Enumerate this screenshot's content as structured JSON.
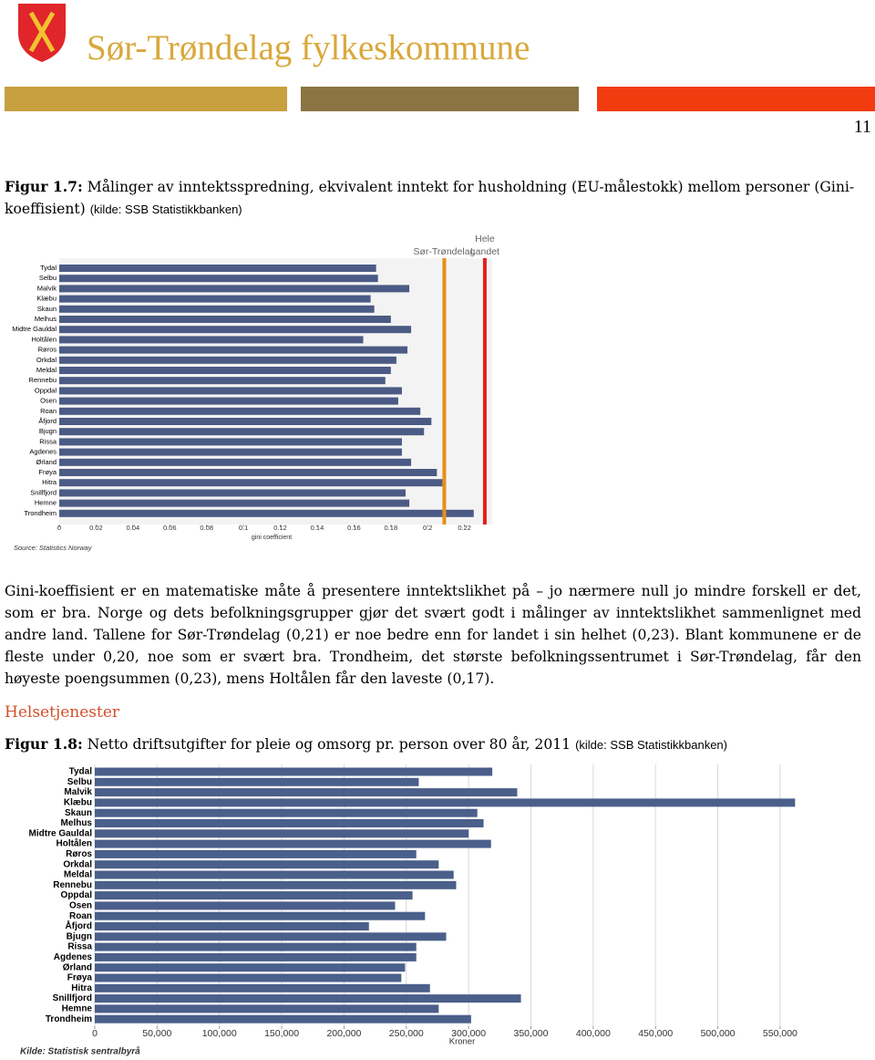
{
  "header": {
    "title": "Sør-Trøndelag fylkeskommune",
    "page_number": "11"
  },
  "figure_1": {
    "label": "Figur 1.7:",
    "text": "Målinger av inntektsspredning, ekvivalent inntekt for husholdning (EU-målestokk) mellom personer (Gini-koeffisient)",
    "source": "(kilde: SSB Statistikkbanken)"
  },
  "body_text": "Gini-koeffisient er en matematiske måte å presentere inntektslikhet på – jo nærmere null jo mindre forskell er det, som er bra. Norge og dets befolkningsgrupper gjør det svært godt i målinger av inntektslikhet sammenlignet med andre land. Tallene for Sør-Trøndelag (0,21) er noe bedre enn for landet i sin helhet (0,23). Blant kommunene er de fleste under 0,20, noe som er svært bra. Trondheim, det største befolkningssentrumet i Sør-Trøndelag, får den høyeste poengsummen (0,23), mens Holtålen får den laveste (0,17).",
  "section_heading": "Helsetjenester",
  "figure_2": {
    "label": "Figur 1.8:",
    "text": "Netto driftsutgifter for pleie og omsorg pr. person over 80 år, 2011",
    "source": "(kilde: SSB Statistikkbanken)"
  },
  "chart_data": [
    {
      "type": "bar",
      "orientation": "horizontal",
      "categories": [
        "Tydal",
        "Selbu",
        "Malvik",
        "Klæbu",
        "Skaun",
        "Melhus",
        "Midtre Gauldal",
        "Holtålen",
        "Røros",
        "Orkdal",
        "Meldal",
        "Rennebu",
        "Oppdal",
        "Osen",
        "Roan",
        "Åfjord",
        "Bjugn",
        "Rissa",
        "Agdenes",
        "Ørland",
        "Frøya",
        "Hitra",
        "Snillfjord",
        "Hemne",
        "Trondheim"
      ],
      "values": [
        0.172,
        0.173,
        0.19,
        0.169,
        0.171,
        0.18,
        0.191,
        0.165,
        0.189,
        0.183,
        0.18,
        0.177,
        0.186,
        0.184,
        0.196,
        0.202,
        0.198,
        0.186,
        0.186,
        0.191,
        0.205,
        0.208,
        0.188,
        0.19,
        0.225
      ],
      "color": "#4b5b85",
      "xlim": [
        0,
        0.235
      ],
      "xticks": [
        0,
        0.02,
        0.04,
        0.06,
        0.08,
        0.1,
        0.12,
        0.14,
        0.16,
        0.18,
        0.2,
        0.22
      ],
      "xlabel": "gini coefficient",
      "source": "Source: Statistics Norway",
      "reference_lines": [
        {
          "name_lines": [
            "Sør-Trøndelag"
          ],
          "value": 0.209,
          "color": "#e8901a"
        },
        {
          "name_lines": [
            "Hele",
            "Landet"
          ],
          "value": 0.231,
          "color": "#e02020"
        }
      ]
    },
    {
      "type": "bar",
      "orientation": "horizontal",
      "categories": [
        "Tydal",
        "Selbu",
        "Malvik",
        "Klæbu",
        "Skaun",
        "Melhus",
        "Midtre Gauldal",
        "Holtålen",
        "Røros",
        "Orkdal",
        "Meldal",
        "Rennebu",
        "Oppdal",
        "Osen",
        "Roan",
        "Åfjord",
        "Bjugn",
        "Rissa",
        "Agdenes",
        "Ørland",
        "Frøya",
        "Hitra",
        "Snillfjord",
        "Hemne",
        "Trondheim"
      ],
      "values": [
        319000,
        260000,
        339000,
        562000,
        307000,
        312000,
        300000,
        318000,
        258000,
        276000,
        288000,
        290000,
        255000,
        241000,
        265000,
        220000,
        282000,
        258000,
        258000,
        249000,
        246000,
        269000,
        342000,
        276000,
        302000
      ],
      "color": "#4a5f8a",
      "xlim": [
        0,
        590000
      ],
      "xticks": [
        0,
        {
          "value": 50000,
          "label": "50,000"
        },
        {
          "value": 100000,
          "label": "100,000"
        },
        {
          "value": 150000,
          "label": "150,000"
        },
        {
          "value": 200000,
          "label": "200,000"
        },
        {
          "value": 250000,
          "label": "250,000"
        },
        {
          "value": 300000,
          "label": "300,000"
        },
        {
          "value": 350000,
          "label": "350,000"
        },
        {
          "value": 400000,
          "label": "400,000"
        },
        {
          "value": 450000,
          "label": "450,000"
        },
        {
          "value": 500000,
          "label": "500,000"
        },
        {
          "value": 550000,
          "label": "550,000"
        }
      ],
      "grid": true,
      "xlabel": "Kroner",
      "source": "Kilde: Statistisk sentralbyrå"
    }
  ]
}
